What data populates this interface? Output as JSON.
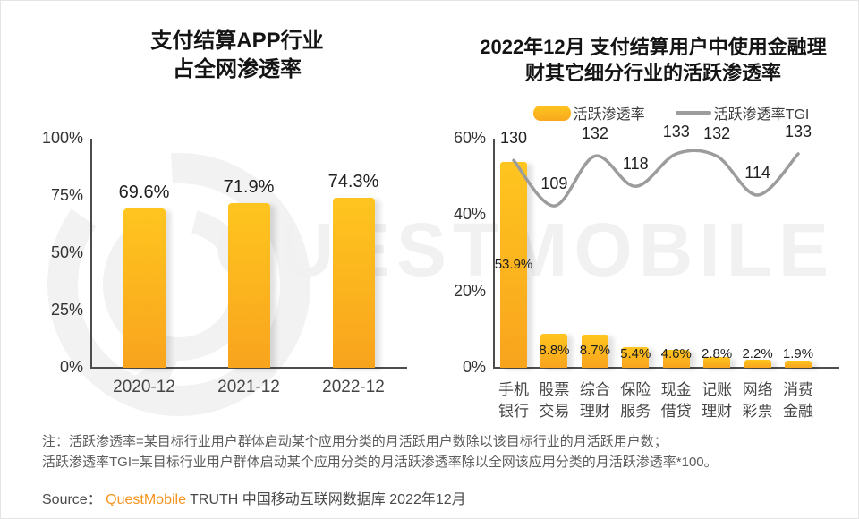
{
  "watermark": {
    "text": "QUESTMOBILE"
  },
  "colors": {
    "bar_top": "#FFC51F",
    "bar_bottom": "#F8A41D",
    "tgi_line": "#9C9C9C",
    "brand_orange": "#F7941D",
    "axis": "#4D4D4D"
  },
  "notes": {
    "line1": "注：活跃渗透率=某目标行业用户群体启动某个应用分类的月活跃用户数除以该目标行业的月活跃用户数；",
    "line2": "活跃渗透率TGI=某目标行业用户群体启动某个应用分类的月活跃渗透率除以全网该应用分类的月活跃渗透率*100。"
  },
  "source": {
    "prefix": "Source： ",
    "brand": "QuestMobile",
    "suffix": " TRUTH 中国移动互联网数据库 2022年12月"
  },
  "chart_data": [
    {
      "type": "bar",
      "title": "支付结算APP行业 占全网渗透率",
      "title_lines": [
        "支付结算APP行业",
        "占全网渗透率"
      ],
      "categories": [
        "2020-12",
        "2021-12",
        "2022-12"
      ],
      "values": [
        69.6,
        71.9,
        74.3
      ],
      "value_labels": [
        "69.6%",
        "71.9%",
        "74.3%"
      ],
      "ylabel": "",
      "xlabel": "",
      "ylim": [
        0,
        100
      ],
      "ytick_values": [
        100,
        75,
        50,
        25,
        0
      ],
      "ytick_labels": [
        "100%",
        "75%",
        "50%",
        "25%",
        "0%"
      ],
      "grid": false,
      "legend_position": "none"
    },
    {
      "type": "bar+line",
      "title": "2022年12月 支付结算用户中使用金融理财其它细分行业的活跃渗透率",
      "title_lines": [
        "2022年12月 支付结算用户中使用金融理",
        "财其它细分行业的活跃渗透率"
      ],
      "legend": [
        {
          "label": "活跃渗透率",
          "swatch": "bar"
        },
        {
          "label": "活跃渗透率TGI",
          "swatch": "line"
        }
      ],
      "categories": [
        "手机\n银行",
        "股票\n交易",
        "综合\n理财",
        "保险\n服务",
        "现金\n借贷",
        "记账\n理财",
        "网络\n彩票",
        "消费\n金融"
      ],
      "series": [
        {
          "name": "活跃渗透率",
          "type": "bar",
          "values": [
            53.9,
            8.8,
            8.7,
            5.4,
            4.6,
            2.8,
            2.2,
            1.9
          ],
          "value_labels": [
            "53.9%",
            "8.8%",
            "8.7%",
            "5.4%",
            "4.6%",
            "2.8%",
            "2.2%",
            "1.9%"
          ]
        },
        {
          "name": "活跃渗透率TGI",
          "type": "line",
          "values": [
            130,
            109,
            132,
            118,
            133,
            132,
            114,
            133
          ],
          "value_labels": [
            "130",
            "109",
            "132",
            "118",
            "133",
            "132",
            "114",
            "133"
          ]
        }
      ],
      "ylim": [
        0,
        60
      ],
      "ytick_values": [
        60,
        40,
        20,
        0
      ],
      "ytick_labels": [
        "60%",
        "40%",
        "20%",
        "0%"
      ],
      "grid": false,
      "legend_position": "top"
    }
  ]
}
